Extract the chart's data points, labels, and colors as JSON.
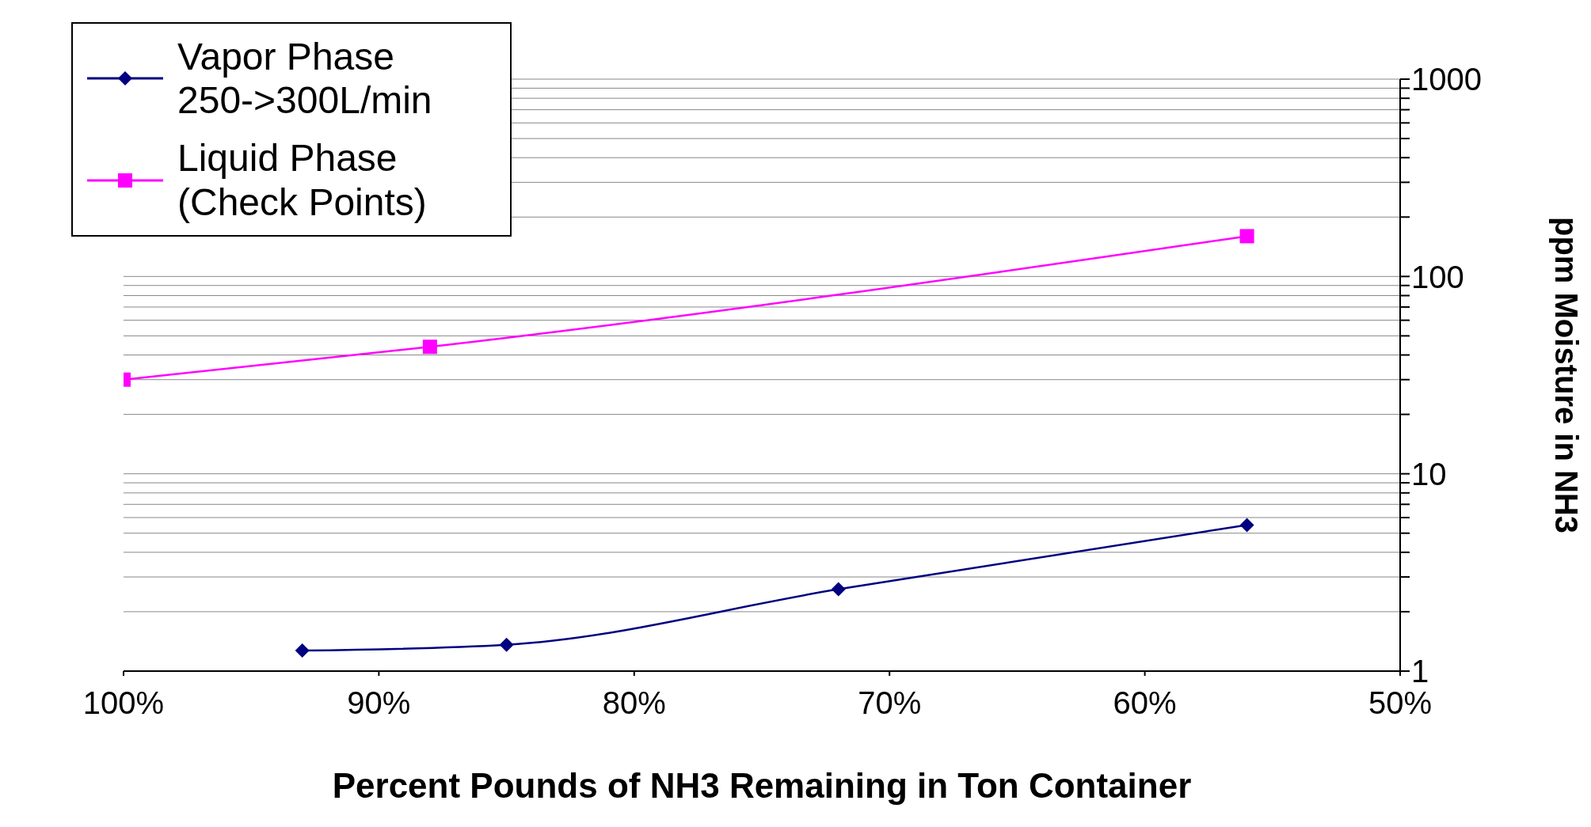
{
  "chart_data": {
    "type": "line",
    "xlabel": "Percent Pounds of NH3 Remaining in Ton Container",
    "ylabel": "ppm Moisture in NH3",
    "series": [
      {
        "name": "Vapor Phase 250->300L/min",
        "color": "#000080",
        "marker": "diamond",
        "x": [
          93,
          85,
          72,
          56
        ],
        "values": [
          1.27,
          1.36,
          2.6,
          5.5
        ]
      },
      {
        "name": "Liquid Phase (Check Points)",
        "color": "#ff00ff",
        "marker": "square",
        "x": [
          100,
          88,
          56
        ],
        "values": [
          30,
          44,
          160
        ]
      }
    ],
    "xlim": [
      100,
      50
    ],
    "xticks": [
      {
        "value": 100,
        "label": "100%"
      },
      {
        "value": 90,
        "label": "90%"
      },
      {
        "value": 80,
        "label": "80%"
      },
      {
        "value": 70,
        "label": "70%"
      },
      {
        "value": 60,
        "label": "60%"
      },
      {
        "value": 50,
        "label": "50%"
      }
    ],
    "log": "y",
    "ylim": [
      1,
      1000
    ],
    "yticks": [
      1,
      {
        "value": 2,
        "label": null
      },
      {
        "value": 3,
        "label": null
      },
      {
        "value": 4,
        "label": null
      },
      {
        "value": 5,
        "label": null
      },
      {
        "value": 6,
        "label": null
      },
      {
        "value": 7,
        "label": null
      },
      {
        "value": 8,
        "label": null
      },
      {
        "value": 9,
        "label": null
      },
      10,
      {
        "value": 20,
        "label": null
      },
      {
        "value": 30,
        "label": null
      },
      {
        "value": 40,
        "label": null
      },
      {
        "value": 50,
        "label": null
      },
      {
        "value": 60,
        "label": null
      },
      {
        "value": 70,
        "label": null
      },
      {
        "value": 80,
        "label": null
      },
      {
        "value": 90,
        "label": null
      },
      100,
      {
        "value": 200,
        "label": null
      },
      {
        "value": 300,
        "label": null
      },
      {
        "value": 400,
        "label": null
      },
      {
        "value": 500,
        "label": null
      },
      {
        "value": 600,
        "label": null
      },
      {
        "value": 700,
        "label": null
      },
      {
        "value": 800,
        "label": null
      },
      {
        "value": 900,
        "label": null
      },
      1000
    ],
    "grid": "y",
    "legend": "top left",
    "line_style": "solid"
  }
}
